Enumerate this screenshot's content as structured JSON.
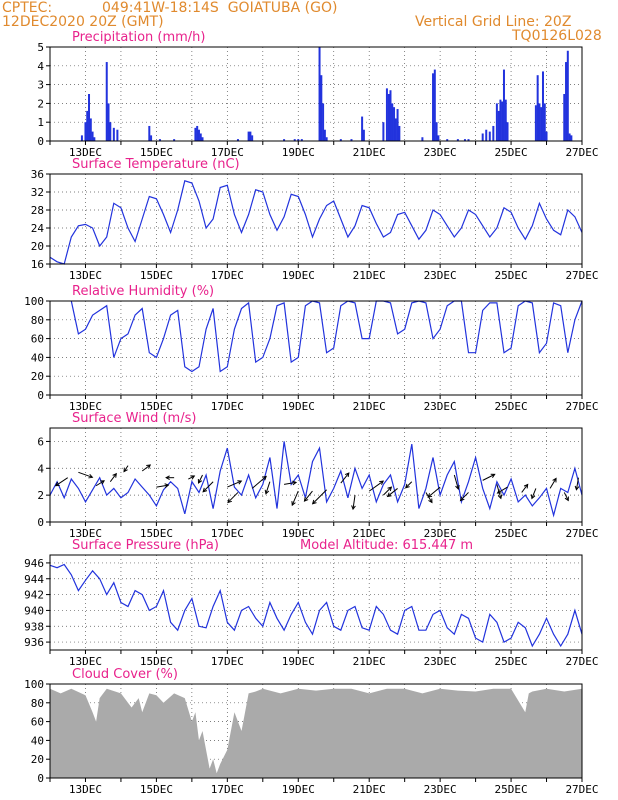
{
  "header": {
    "source": "CPTEC:",
    "location": "049:41W-18:14S  GOIATUBA (GO)",
    "datetime": "12DEC2020 20Z (GMT)",
    "grid_note": "Vertical Grid Line: 20Z",
    "code": "TQ0126L028"
  },
  "colors": {
    "header": "#e08a2e",
    "title": "#e8228c",
    "series": "#2233dd",
    "cloud": "#aaaaaa",
    "arrow": "#000000"
  },
  "x_ticks": [
    "13DEC",
    "15DEC",
    "17DEC",
    "19DEC",
    "21DEC",
    "23DEC",
    "25DEC",
    "27DEC"
  ],
  "chart_data": [
    {
      "id": "precip",
      "type": "bar",
      "title": "Precipitation (mm/h)",
      "ylim": [
        0,
        5
      ],
      "yticks": [
        0,
        1,
        2,
        3,
        4,
        5
      ],
      "grid": true,
      "bars": [
        [
          12.9,
          0.3
        ],
        [
          13.0,
          1.0
        ],
        [
          13.05,
          1.6
        ],
        [
          13.1,
          2.5
        ],
        [
          13.15,
          1.2
        ],
        [
          13.2,
          0.5
        ],
        [
          13.25,
          0.2
        ],
        [
          13.6,
          4.2
        ],
        [
          13.65,
          2.0
        ],
        [
          13.7,
          1.0
        ],
        [
          13.8,
          0.7
        ],
        [
          13.9,
          0.6
        ],
        [
          14.8,
          0.8
        ],
        [
          14.85,
          0.3
        ],
        [
          15.1,
          0.1
        ],
        [
          15.5,
          0.1
        ],
        [
          16.1,
          0.7
        ],
        [
          16.15,
          0.8
        ],
        [
          16.2,
          0.6
        ],
        [
          16.25,
          0.4
        ],
        [
          16.3,
          0.2
        ],
        [
          17.3,
          0.1
        ],
        [
          17.6,
          0.5
        ],
        [
          17.65,
          0.5
        ],
        [
          17.7,
          0.3
        ],
        [
          18.6,
          0.1
        ],
        [
          18.9,
          0.1
        ],
        [
          19.0,
          0.1
        ],
        [
          19.1,
          0.1
        ],
        [
          19.6,
          5.0
        ],
        [
          19.65,
          3.5
        ],
        [
          19.7,
          2.0
        ],
        [
          19.75,
          0.6
        ],
        [
          19.8,
          0.2
        ],
        [
          20.2,
          0.1
        ],
        [
          20.5,
          0.1
        ],
        [
          20.8,
          1.3
        ],
        [
          20.85,
          0.6
        ],
        [
          21.4,
          1.0
        ],
        [
          21.5,
          2.8
        ],
        [
          21.55,
          2.5
        ],
        [
          21.6,
          2.7
        ],
        [
          21.65,
          2.0
        ],
        [
          21.7,
          1.8
        ],
        [
          21.75,
          1.2
        ],
        [
          21.8,
          1.7
        ],
        [
          21.85,
          0.8
        ],
        [
          22.5,
          0.2
        ],
        [
          22.8,
          3.6
        ],
        [
          22.85,
          3.8
        ],
        [
          22.9,
          1.0
        ],
        [
          22.95,
          0.3
        ],
        [
          23.2,
          0.1
        ],
        [
          23.5,
          0.1
        ],
        [
          23.7,
          0.1
        ],
        [
          23.8,
          0.1
        ],
        [
          24.2,
          0.4
        ],
        [
          24.3,
          0.6
        ],
        [
          24.4,
          0.5
        ],
        [
          24.5,
          0.8
        ],
        [
          24.6,
          2.0
        ],
        [
          24.65,
          1.6
        ],
        [
          24.7,
          2.2
        ],
        [
          24.75,
          2.1
        ],
        [
          24.8,
          3.8
        ],
        [
          24.85,
          2.2
        ],
        [
          24.9,
          1.0
        ],
        [
          25.7,
          1.9
        ],
        [
          25.75,
          3.5
        ],
        [
          25.8,
          2.0
        ],
        [
          25.85,
          1.8
        ],
        [
          25.9,
          3.7
        ],
        [
          25.95,
          2.0
        ],
        [
          26.0,
          0.5
        ],
        [
          26.5,
          2.5
        ],
        [
          26.55,
          4.2
        ],
        [
          26.6,
          4.8
        ],
        [
          26.65,
          0.4
        ],
        [
          26.7,
          0.3
        ]
      ]
    },
    {
      "id": "temp",
      "type": "line",
      "title": "Surface Temperature (nC)",
      "ylim": [
        16,
        36
      ],
      "yticks": [
        16,
        20,
        24,
        28,
        32,
        36
      ],
      "grid": true,
      "x": [
        12.0,
        12.2,
        12.4,
        12.6,
        12.8,
        13.0,
        13.2,
        13.4,
        13.6,
        13.8,
        14.0,
        14.2,
        14.4,
        14.6,
        14.8,
        15.0,
        15.2,
        15.4,
        15.6,
        15.8,
        16.0,
        16.2,
        16.4,
        16.6,
        16.8,
        17.0,
        17.2,
        17.4,
        17.6,
        17.8,
        18.0,
        18.2,
        18.4,
        18.6,
        18.8,
        19.0,
        19.2,
        19.4,
        19.6,
        19.8,
        20.0,
        20.2,
        20.4,
        20.6,
        20.8,
        21.0,
        21.2,
        21.4,
        21.6,
        21.8,
        22.0,
        22.2,
        22.4,
        22.6,
        22.8,
        23.0,
        23.2,
        23.4,
        23.6,
        23.8,
        24.0,
        24.2,
        24.4,
        24.6,
        24.8,
        25.0,
        25.2,
        25.4,
        25.6,
        25.8,
        26.0,
        26.2,
        26.4,
        26.6,
        26.8,
        27.0
      ],
      "values": [
        17.5,
        16.5,
        16.0,
        22.0,
        24.5,
        24.8,
        24.0,
        20.0,
        22.0,
        29.5,
        28.5,
        24.0,
        21.0,
        26.0,
        31.0,
        30.5,
        27.0,
        23.0,
        28.0,
        34.5,
        34.0,
        30.0,
        24.0,
        26.0,
        33.0,
        33.5,
        27.0,
        23.0,
        27.0,
        32.5,
        32.0,
        27.0,
        23.5,
        26.5,
        31.5,
        31.0,
        27.0,
        22.0,
        26.0,
        29.0,
        30.0,
        26.0,
        22.0,
        24.5,
        29.0,
        28.5,
        25.0,
        22.0,
        23.0,
        27.0,
        27.5,
        24.5,
        21.5,
        23.5,
        28.0,
        27.0,
        24.5,
        22.0,
        24.0,
        28.0,
        27.0,
        24.5,
        22.0,
        24.0,
        28.5,
        27.5,
        24.0,
        21.5,
        24.5,
        29.5,
        26.0,
        23.5,
        22.5,
        28.0,
        26.5,
        23.0
      ]
    },
    {
      "id": "rh",
      "type": "line",
      "title": "Relative Humidity (%)",
      "ylim": [
        0,
        100
      ],
      "yticks": [
        0,
        20,
        40,
        60,
        80,
        100
      ],
      "grid": true,
      "x": [
        12.6,
        12.8,
        13.0,
        13.2,
        13.4,
        13.6,
        13.8,
        14.0,
        14.2,
        14.4,
        14.6,
        14.8,
        15.0,
        15.2,
        15.4,
        15.6,
        15.8,
        16.0,
        16.2,
        16.4,
        16.6,
        16.8,
        17.0,
        17.2,
        17.4,
        17.6,
        17.8,
        18.0,
        18.2,
        18.4,
        18.6,
        18.8,
        19.0,
        19.2,
        19.4,
        19.6,
        19.8,
        20.0,
        20.2,
        20.4,
        20.6,
        20.8,
        21.0,
        21.2,
        21.4,
        21.6,
        21.8,
        22.0,
        22.2,
        22.4,
        22.6,
        22.8,
        23.0,
        23.2,
        23.4,
        23.6,
        23.8,
        24.0,
        24.2,
        24.4,
        24.6,
        24.8,
        25.0,
        25.2,
        25.4,
        25.6,
        25.8,
        26.0,
        26.2,
        26.4,
        26.6,
        26.8,
        27.0
      ],
      "values": [
        100,
        65,
        70,
        85,
        90,
        95,
        40,
        60,
        65,
        85,
        92,
        45,
        40,
        60,
        85,
        90,
        30,
        25,
        30,
        70,
        92,
        25,
        30,
        70,
        92,
        98,
        35,
        40,
        60,
        95,
        98,
        35,
        40,
        95,
        100,
        98,
        45,
        50,
        95,
        100,
        98,
        60,
        60,
        100,
        100,
        98,
        65,
        70,
        98,
        100,
        98,
        60,
        70,
        95,
        100,
        100,
        45,
        45,
        90,
        98,
        98,
        45,
        50,
        95,
        100,
        98,
        45,
        55,
        98,
        95,
        45,
        80,
        100
      ]
    },
    {
      "id": "wind",
      "type": "line",
      "title": "Surface Wind (m/s)",
      "ylim": [
        0,
        7
      ],
      "yticks": [
        0,
        2,
        4,
        6
      ],
      "grid": true,
      "x": [
        12.0,
        12.2,
        12.4,
        12.6,
        12.8,
        13.0,
        13.2,
        13.4,
        13.6,
        13.8,
        14.0,
        14.2,
        14.4,
        14.6,
        14.8,
        15.0,
        15.2,
        15.4,
        15.6,
        15.8,
        16.0,
        16.2,
        16.4,
        16.6,
        16.8,
        17.0,
        17.2,
        17.4,
        17.6,
        17.8,
        18.0,
        18.2,
        18.4,
        18.6,
        18.8,
        19.0,
        19.2,
        19.4,
        19.6,
        19.8,
        20.0,
        20.2,
        20.4,
        20.6,
        20.8,
        21.0,
        21.2,
        21.4,
        21.6,
        21.8,
        22.0,
        22.2,
        22.4,
        22.6,
        22.8,
        23.0,
        23.2,
        23.4,
        23.6,
        23.8,
        24.0,
        24.2,
        24.4,
        24.6,
        24.8,
        25.0,
        25.2,
        25.4,
        25.6,
        25.8,
        26.0,
        26.2,
        26.4,
        26.6,
        26.8,
        27.0
      ],
      "values": [
        2.0,
        3.0,
        1.8,
        3.2,
        2.5,
        1.5,
        2.4,
        3.3,
        2.0,
        2.5,
        1.8,
        2.2,
        3.2,
        2.6,
        2.0,
        1.2,
        2.4,
        3.0,
        2.5,
        0.6,
        3.0,
        2.2,
        3.5,
        1.0,
        3.8,
        5.5,
        2.6,
        2.0,
        3.5,
        1.8,
        2.8,
        4.8,
        1.0,
        6.0,
        2.8,
        3.5,
        1.8,
        4.5,
        5.5,
        1.5,
        2.5,
        3.8,
        1.8,
        4.0,
        2.5,
        3.5,
        1.5,
        2.8,
        3.5,
        1.5,
        2.8,
        5.8,
        1.0,
        2.5,
        4.8,
        2.0,
        3.5,
        4.5,
        1.5,
        3.0,
        4.8,
        2.5,
        1.0,
        3.0,
        2.0,
        3.2,
        1.5,
        2.0,
        1.2,
        1.8,
        2.5,
        0.5,
        2.5,
        2.2,
        4.0,
        2.0
      ],
      "arrows": [
        [
          12.5,
          3.3,
          -12,
          8
        ],
        [
          12.8,
          3.7,
          14,
          5
        ],
        [
          13.3,
          2.7,
          8,
          -5
        ],
        [
          13.7,
          3.0,
          6,
          -8
        ],
        [
          14.2,
          4.2,
          -4,
          6
        ],
        [
          14.6,
          3.8,
          8,
          -6
        ],
        [
          15.0,
          2.6,
          12,
          -2
        ],
        [
          15.5,
          3.3,
          -8,
          0
        ],
        [
          15.9,
          3.2,
          6,
          -3
        ],
        [
          16.3,
          3.5,
          -4,
          8
        ],
        [
          16.6,
          3.0,
          -10,
          10
        ],
        [
          17.0,
          2.6,
          14,
          -6
        ],
        [
          17.3,
          2.2,
          -10,
          10
        ],
        [
          17.7,
          2.5,
          14,
          -12
        ],
        [
          18.2,
          3.0,
          -4,
          12
        ],
        [
          18.6,
          2.8,
          12,
          -2
        ],
        [
          19.0,
          2.3,
          -6,
          14
        ],
        [
          19.4,
          2.3,
          -8,
          10
        ],
        [
          19.8,
          2.4,
          -14,
          14
        ],
        [
          20.2,
          2.9,
          8,
          -10
        ],
        [
          20.6,
          2.0,
          -2,
          14
        ],
        [
          21.0,
          2.3,
          14,
          -10
        ],
        [
          21.4,
          2.0,
          8,
          -8
        ],
        [
          21.8,
          2.5,
          -10,
          8
        ],
        [
          22.2,
          3.0,
          -6,
          6
        ],
        [
          22.6,
          2.2,
          6,
          10
        ],
        [
          23.0,
          2.6,
          -12,
          10
        ],
        [
          23.4,
          3.5,
          4,
          14
        ],
        [
          23.8,
          2.2,
          -8,
          8
        ],
        [
          24.2,
          3.1,
          12,
          -6
        ],
        [
          24.6,
          2.8,
          4,
          14
        ],
        [
          24.9,
          2.6,
          -10,
          6
        ],
        [
          25.3,
          2.2,
          6,
          -8
        ],
        [
          25.7,
          2.5,
          -4,
          10
        ],
        [
          26.1,
          2.5,
          6,
          -10
        ],
        [
          26.5,
          2.2,
          4,
          8
        ],
        [
          26.9,
          3.3,
          -2,
          12
        ]
      ]
    },
    {
      "id": "pres",
      "type": "line",
      "title": "Surface Pressure (hPa)",
      "annotation": "Model Altitude: 615.447 m",
      "ylim": [
        935,
        947
      ],
      "yticks": [
        936,
        938,
        940,
        942,
        944,
        946
      ],
      "grid": true,
      "x": [
        12.0,
        12.2,
        12.4,
        12.6,
        12.8,
        13.0,
        13.2,
        13.4,
        13.6,
        13.8,
        14.0,
        14.2,
        14.4,
        14.6,
        14.8,
        15.0,
        15.2,
        15.4,
        15.6,
        15.8,
        16.0,
        16.2,
        16.4,
        16.6,
        16.8,
        17.0,
        17.2,
        17.4,
        17.6,
        17.8,
        18.0,
        18.2,
        18.4,
        18.6,
        18.8,
        19.0,
        19.2,
        19.4,
        19.6,
        19.8,
        20.0,
        20.2,
        20.4,
        20.6,
        20.8,
        21.0,
        21.2,
        21.4,
        21.6,
        21.8,
        22.0,
        22.2,
        22.4,
        22.6,
        22.8,
        23.0,
        23.2,
        23.4,
        23.6,
        23.8,
        24.0,
        24.2,
        24.4,
        24.6,
        24.8,
        25.0,
        25.2,
        25.4,
        25.6,
        25.8,
        26.0,
        26.2,
        26.4,
        26.6,
        26.8,
        27.0
      ],
      "values": [
        945.7,
        945.4,
        945.8,
        944.5,
        942.5,
        943.8,
        945.0,
        944.0,
        942.0,
        943.5,
        941.0,
        940.5,
        942.5,
        942.0,
        940.0,
        940.5,
        942.5,
        938.5,
        937.5,
        940.0,
        941.5,
        938.0,
        937.8,
        940.5,
        942.5,
        938.5,
        937.5,
        940.0,
        940.5,
        939.0,
        938.0,
        941.0,
        939.0,
        937.5,
        939.5,
        941.0,
        938.5,
        937.0,
        940.0,
        941.0,
        938.0,
        937.5,
        940.0,
        940.5,
        937.8,
        937.5,
        940.5,
        939.5,
        937.5,
        937.0,
        940.0,
        940.5,
        937.5,
        937.5,
        939.5,
        940.0,
        937.8,
        937.0,
        939.5,
        939.0,
        936.5,
        936.0,
        939.5,
        938.5,
        936.0,
        936.5,
        938.5,
        937.8,
        935.5,
        937.0,
        939.0,
        937.0,
        935.5,
        937.0,
        940.0,
        937.0
      ]
    },
    {
      "id": "cloud",
      "type": "area",
      "title": "Cloud Cover (%)",
      "ylim": [
        0,
        100
      ],
      "yticks": [
        0,
        20,
        40,
        60,
        80,
        100
      ],
      "grid": true,
      "x": [
        12.0,
        12.3,
        12.6,
        13.0,
        13.2,
        13.3,
        13.4,
        13.6,
        14.0,
        14.3,
        14.5,
        14.6,
        14.8,
        15.0,
        15.2,
        15.5,
        15.8,
        16.0,
        16.1,
        16.2,
        16.3,
        16.5,
        16.6,
        16.7,
        16.8,
        17.0,
        17.2,
        17.4,
        17.6,
        17.8,
        18.0,
        18.5,
        19.0,
        19.5,
        20.0,
        20.5,
        21.0,
        21.5,
        22.0,
        22.5,
        23.0,
        23.5,
        24.0,
        24.5,
        25.0,
        25.4,
        25.5,
        25.6,
        26.0,
        26.5,
        27.0
      ],
      "values": [
        95,
        90,
        95,
        88,
        70,
        60,
        85,
        95,
        90,
        75,
        85,
        70,
        90,
        88,
        80,
        90,
        85,
        60,
        70,
        40,
        50,
        10,
        20,
        5,
        15,
        30,
        70,
        50,
        90,
        92,
        95,
        90,
        95,
        93,
        95,
        95,
        90,
        95,
        95,
        90,
        95,
        93,
        92,
        95,
        95,
        70,
        90,
        92,
        95,
        92,
        95
      ]
    }
  ]
}
